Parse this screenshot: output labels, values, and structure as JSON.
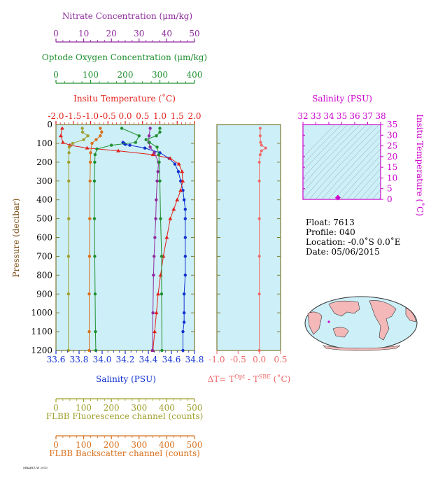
{
  "colors": {
    "nitrate": "#8e2a9c",
    "oxygen": "#1f8f2f",
    "temperature": "#e0201a",
    "salinity": "#1030d0",
    "fluorescence": "#a0a030",
    "backscatter": "#d8701c",
    "delta_t": "#f06a6a",
    "inset": "#cc00cc",
    "panel_bg": "#cdeff7",
    "frame": "#7a7a30"
  },
  "axes": {
    "nitrate": {
      "title": "Nitrate Concentration (μm/kg)",
      "ticks": [
        "0",
        "10",
        "20",
        "30",
        "40",
        "50"
      ]
    },
    "oxygen": {
      "title": "Optode Oxygen Concentration (μm/kg)",
      "ticks": [
        "0",
        "100",
        "200",
        "300",
        "400"
      ]
    },
    "temperature": {
      "title": "Insitu Temperature (˚C)",
      "ticks": [
        "-2.0",
        "-1.5",
        "-1.0",
        "-0.5",
        "0.0",
        "0.5",
        "1.0",
        "1.5",
        "2.0"
      ]
    },
    "salinity": {
      "title": "Salinity (PSU)",
      "ticks": [
        "33.6",
        "33.8",
        "34.0",
        "34.2",
        "34.4",
        "34.6",
        "34.8"
      ]
    },
    "fluorescence": {
      "title": "FLBB Fluorescence channel (counts)",
      "ticks": [
        "0",
        "100",
        "200",
        "300",
        "400",
        "500"
      ]
    },
    "backscatter": {
      "title": "FLBB Backscatter channel (counts)",
      "ticks": [
        "0",
        "100",
        "200",
        "300",
        "400",
        "500"
      ]
    },
    "pressure": {
      "title": "Pressure (decibar)",
      "ticks": [
        "0",
        "100",
        "200",
        "300",
        "400",
        "500",
        "600",
        "700",
        "800",
        "900",
        "1000",
        "1100",
        "1200"
      ]
    },
    "delta_t": {
      "title_prefix": "ΔT= T",
      "sup_opt": "Opt",
      "mid": " - T",
      "sup_sbe": "SBE",
      "suffix": " (˚C)",
      "ticks": [
        "-1.0",
        "-0.5",
        "0.0",
        "0.5"
      ]
    },
    "inset_salinity": {
      "title": "Salinity (PSU)",
      "ticks": [
        "32",
        "33",
        "34",
        "35",
        "36",
        "37",
        "38"
      ]
    },
    "inset_temperature": {
      "title": "Insitu Temperature (˚C)",
      "ticks": [
        "0",
        "5",
        "10",
        "15",
        "20",
        "25",
        "30",
        "35"
      ]
    }
  },
  "info": {
    "float": "Float:  7613",
    "profile": "Profile:  040",
    "location": "Location:  -0.0˚S   0.0˚E",
    "date": "Date:  05/06/2015"
  },
  "footer_code": "MBARI/UW 2015",
  "chart_data": [
    {
      "type": "line",
      "name": "main-profile",
      "y_axis": "pressure",
      "ylim": [
        1200,
        0
      ],
      "series": [
        {
          "name": "Salinity",
          "axis": "salinity",
          "xlim": [
            33.6,
            34.8
          ],
          "x": [
            34.18,
            34.19,
            34.2,
            34.24,
            34.37,
            34.5,
            34.58,
            34.63,
            34.66,
            34.68,
            34.7,
            34.71,
            34.72,
            34.72,
            34.72,
            34.72,
            34.72,
            34.71,
            34.71,
            34.71,
            34.7,
            34.7
          ],
          "y": [
            95,
            100,
            105,
            110,
            125,
            150,
            180,
            210,
            250,
            300,
            350,
            400,
            450,
            500,
            600,
            700,
            800,
            900,
            1000,
            1050,
            1100,
            1200
          ]
        },
        {
          "name": "Temperature",
          "axis": "temperature",
          "xlim": [
            -2.0,
            2.0
          ],
          "x": [
            -1.82,
            -1.86,
            -1.8,
            -1.6,
            -1.1,
            -0.2,
            0.8,
            1.3,
            1.55,
            1.64,
            1.66,
            1.6,
            1.5,
            1.4,
            1.3,
            1.2,
            1.1,
            1.02,
            0.95,
            0.9,
            0.85,
            0.8
          ],
          "y": [
            20,
            60,
            95,
            110,
            125,
            140,
            160,
            180,
            210,
            250,
            300,
            350,
            400,
            450,
            500,
            600,
            700,
            800,
            900,
            1000,
            1100,
            1200
          ]
        },
        {
          "name": "Nitrate",
          "axis": "nitrate",
          "xlim": [
            0,
            50
          ],
          "x": [
            34.0,
            33.6,
            33.5,
            34.0,
            35.5,
            37.0,
            36.8,
            36.5,
            36.2,
            36.0,
            35.7,
            35.4,
            35.2,
            35.0,
            34.8
          ],
          "y": [
            20,
            60,
            95,
            120,
            150,
            200,
            250,
            300,
            400,
            500,
            600,
            700,
            800,
            1000,
            1200
          ]
        },
        {
          "name": "Oxygen",
          "axis": "oxygen",
          "xlim": [
            0,
            400
          ],
          "x": [
            300,
            300,
            290,
            260,
            270,
            292,
            297,
            298,
            300,
            302,
            305,
            305,
            306
          ],
          "y": [
            20,
            40,
            60,
            80,
            95,
            120,
            160,
            200,
            300,
            500,
            700,
            900,
            1200
          ]
        },
        {
          "name": "Fluorescence",
          "axis": "fluorescence",
          "xlim": [
            0,
            500
          ],
          "x": [
            95,
            96,
            115,
            100,
            60,
            48,
            47,
            46,
            46,
            46,
            45,
            45,
            45
          ],
          "y": [
            20,
            40,
            60,
            80,
            100,
            120,
            150,
            200,
            300,
            500,
            700,
            900,
            1200
          ]
        },
        {
          "name": "Backscatter",
          "axis": "backscatter",
          "xlim": [
            0,
            500
          ],
          "x": [
            160,
            165,
            160,
            145,
            130,
            125,
            124,
            123,
            122,
            121,
            120,
            120,
            120
          ],
          "y": [
            20,
            40,
            60,
            80,
            100,
            150,
            200,
            300,
            500,
            700,
            900,
            1100,
            1200
          ]
        },
        {
          "name": "Oxygen (green)",
          "axis": "oxygen",
          "xlim": [
            0,
            400
          ],
          "x": [
            190,
            240,
            230,
            160,
            118,
            113,
            112,
            111,
            111,
            112,
            113,
            114,
            115
          ],
          "y": [
            20,
            60,
            95,
            110,
            130,
            160,
            200,
            300,
            500,
            700,
            900,
            1100,
            1200
          ]
        }
      ]
    },
    {
      "type": "line",
      "name": "delta-t",
      "xlim": [
        -1.0,
        0.5
      ],
      "ylim": [
        1200,
        0
      ],
      "x": [
        0.02,
        0.02,
        0.03,
        0.05,
        0.15,
        0.05,
        0.02,
        0.0,
        0.0,
        0.0,
        0.0,
        0.0,
        0.0
      ],
      "y": [
        20,
        60,
        95,
        110,
        125,
        140,
        160,
        200,
        300,
        500,
        700,
        900,
        1200
      ]
    },
    {
      "type": "scatter",
      "name": "ts-inset",
      "xlim": [
        32,
        38
      ],
      "ylim": [
        0,
        35
      ],
      "x": [
        34.7
      ],
      "y": [
        0.8
      ]
    }
  ]
}
